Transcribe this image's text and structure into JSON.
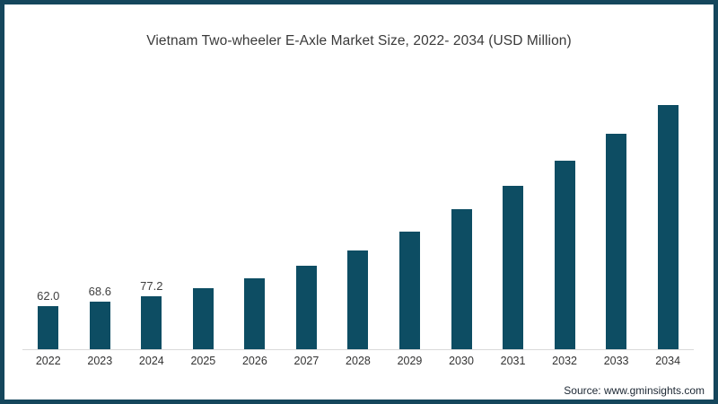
{
  "chart_data": {
    "type": "bar",
    "title": "Vietnam Two-wheeler E-Axle Market Size, 2022- 2034 (USD Million)",
    "categories": [
      "2022",
      "2023",
      "2024",
      "2025",
      "2026",
      "2027",
      "2028",
      "2029",
      "2030",
      "2031",
      "2032",
      "2033",
      "2034"
    ],
    "values": [
      62.0,
      68.6,
      77.2,
      88.4,
      103.1,
      121.2,
      142.8,
      170.9,
      202.6,
      236.1,
      272.9,
      311.9,
      353.5
    ],
    "data_labels": [
      "62.0",
      "68.6",
      "77.2",
      "",
      "",
      "",
      "",
      "",
      "",
      "",
      "",
      "",
      ""
    ],
    "xlabel": "",
    "ylabel": "",
    "ylim": [
      0,
      360
    ],
    "grid": false,
    "legend": false,
    "bar_color": "#0d4d63",
    "axis_line_color": "#d9d9d9",
    "value_label_color": "#404040",
    "tick_label_color": "#333333"
  },
  "source": "Source: www.gminsights.com",
  "colors": {
    "frame_border": "#15465c",
    "background": "#ffffff",
    "title_color": "#3a3a3a",
    "source_color": "#1c2733"
  }
}
